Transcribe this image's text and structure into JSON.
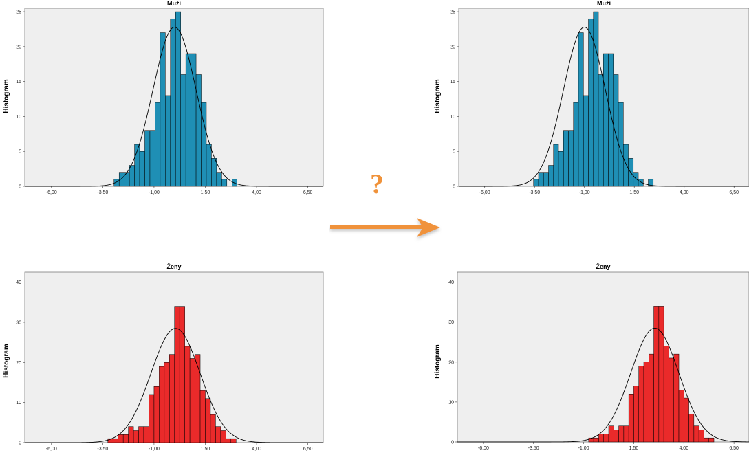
{
  "connector": {
    "symbol": "?",
    "arrow_color": "#f0923a",
    "arrow_icon": "right-arrow-icon"
  },
  "y_axis_label": "Histogram",
  "colors": {
    "muzi": "#1f8fb5",
    "zeny": "#ea2a2a",
    "plot_bg": "#efefef",
    "curve": "#000000"
  },
  "chart_data": [
    {
      "type": "bar",
      "id": "top-left",
      "title": "Muži",
      "ylabel": "Histogram",
      "color": "#1f8fb5",
      "xlim": [
        -7.3,
        7.25
      ],
      "ylim": [
        0,
        25.5
      ],
      "xticks": [
        -6,
        -3.5,
        -1,
        1.5,
        4,
        6.5
      ],
      "xtick_labels": [
        "-6,00",
        "-3,50",
        "-1,00",
        "1,50",
        "4,00",
        "6,50"
      ],
      "yticks": [
        0,
        5,
        10,
        15,
        20,
        25
      ],
      "ytick_labels": [
        "0",
        "5",
        "10",
        "15",
        "20",
        "25"
      ],
      "bin_start": -2.95,
      "bin_width": 0.25,
      "values": [
        1,
        2,
        2,
        3,
        6,
        5,
        8,
        8,
        12,
        22,
        13,
        24,
        25,
        16,
        19,
        19,
        16,
        12,
        6,
        4,
        2,
        1,
        0,
        1
      ],
      "curve": {
        "mean": 0.0,
        "sd": 1.05,
        "peak": 22.8
      }
    },
    {
      "type": "bar",
      "id": "top-right",
      "title": "Muži",
      "ylabel": "Histogram",
      "color": "#1f8fb5",
      "xlim": [
        -7.3,
        7.25
      ],
      "ylim": [
        0,
        25.5
      ],
      "xticks": [
        -6,
        -3.5,
        -1,
        1.5,
        4,
        6.5
      ],
      "xtick_labels": [
        "-6,00",
        "-3,50",
        "-1,00",
        "1,50",
        "4,00",
        "6,50"
      ],
      "yticks": [
        0,
        5,
        10,
        15,
        20,
        25
      ],
      "ytick_labels": [
        "0",
        "5",
        "10",
        "15",
        "20",
        "25"
      ],
      "bin_start": -3.55,
      "bin_width": 0.25,
      "values": [
        1,
        2,
        2,
        3,
        6,
        5,
        8,
        8,
        12,
        22,
        13,
        24,
        25,
        16,
        19,
        19,
        16,
        12,
        6,
        4,
        2,
        1,
        0,
        1
      ],
      "curve": {
        "mean": -1.0,
        "sd": 1.05,
        "peak": 22.8
      }
    },
    {
      "type": "bar",
      "id": "bottom-left",
      "title": "Ženy",
      "ylabel": "Histogram",
      "color": "#ea2a2a",
      "xlim": [
        -7.3,
        7.25
      ],
      "ylim": [
        0,
        42.5
      ],
      "xticks": [
        -6,
        -3.5,
        -1,
        1.5,
        4,
        6.5
      ],
      "xtick_labels": [
        "-6,00",
        "-3,50",
        "-1,00",
        "1,50",
        "4,00",
        "6,50"
      ],
      "yticks": [
        0,
        10,
        20,
        30,
        40
      ],
      "ytick_labels": [
        "0",
        "10",
        "20",
        "30",
        "40"
      ],
      "bin_start": -3.25,
      "bin_width": 0.25,
      "values": [
        1,
        1,
        2,
        2,
        4,
        3,
        4,
        4,
        12,
        14,
        19,
        20,
        22,
        34,
        34,
        24,
        21,
        22,
        13,
        11,
        7,
        4,
        3,
        1,
        1
      ],
      "curve": {
        "mean": 0.05,
        "sd": 1.2,
        "peak": 28.5
      }
    },
    {
      "type": "bar",
      "id": "bottom-right",
      "title": "Ženy",
      "ylabel": "Histogram",
      "color": "#ea2a2a",
      "xlim": [
        -7.3,
        7.25
      ],
      "ylim": [
        0,
        42.5
      ],
      "xticks": [
        -6,
        -3.5,
        -1,
        1.5,
        4,
        6.5
      ],
      "xtick_labels": [
        "-6,00",
        "-3,50",
        "-1,00",
        "1,50",
        "4,00",
        "6,50"
      ],
      "yticks": [
        0,
        10,
        20,
        30,
        40
      ],
      "ytick_labels": [
        "0",
        "10",
        "20",
        "30",
        "40"
      ],
      "bin_start": -0.75,
      "bin_width": 0.25,
      "values": [
        1,
        1,
        2,
        2,
        4,
        3,
        4,
        4,
        12,
        14,
        19,
        20,
        22,
        34,
        34,
        24,
        21,
        22,
        13,
        11,
        7,
        4,
        3,
        1,
        1
      ],
      "curve": {
        "mean": 2.55,
        "sd": 1.2,
        "peak": 28.5
      }
    }
  ]
}
